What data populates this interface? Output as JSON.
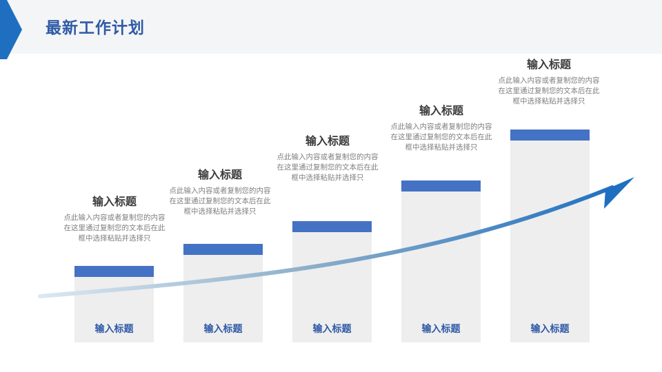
{
  "header": {
    "title": "最新工作计划"
  },
  "colors": {
    "accent": "#4472c4",
    "title": "#2f5aa5",
    "column": "#eeeeef",
    "arrow": "#1f6fc0"
  },
  "steps": [
    {
      "label": "输入标题",
      "title": "输入标题",
      "desc": "点此输入内容或者复制您的内容在这里通过复制您的文本后在此框中选择粘贴并选择只"
    },
    {
      "label": "输入标题",
      "title": "输入标题",
      "desc": "点此输入内容或者复制您的内容在这里通过复制您的文本后在此框中选择粘贴并选择只"
    },
    {
      "label": "输入标题",
      "title": "输入标题",
      "desc": "点此输入内容或者复制您的内容在这里通过复制您的文本后在此框中选择粘贴并选择只"
    },
    {
      "label": "输入标题",
      "title": "输入标题",
      "desc": "点此输入内容或者复制您的内容在这里通过复制您的文本后在此框中选择粘贴并选择只"
    },
    {
      "label": "输入标题",
      "title": "输入标题",
      "desc": "点此输入内容或者复制您的内容在这里通过复制您的文本后在此框中选择粘贴并选择只"
    }
  ]
}
